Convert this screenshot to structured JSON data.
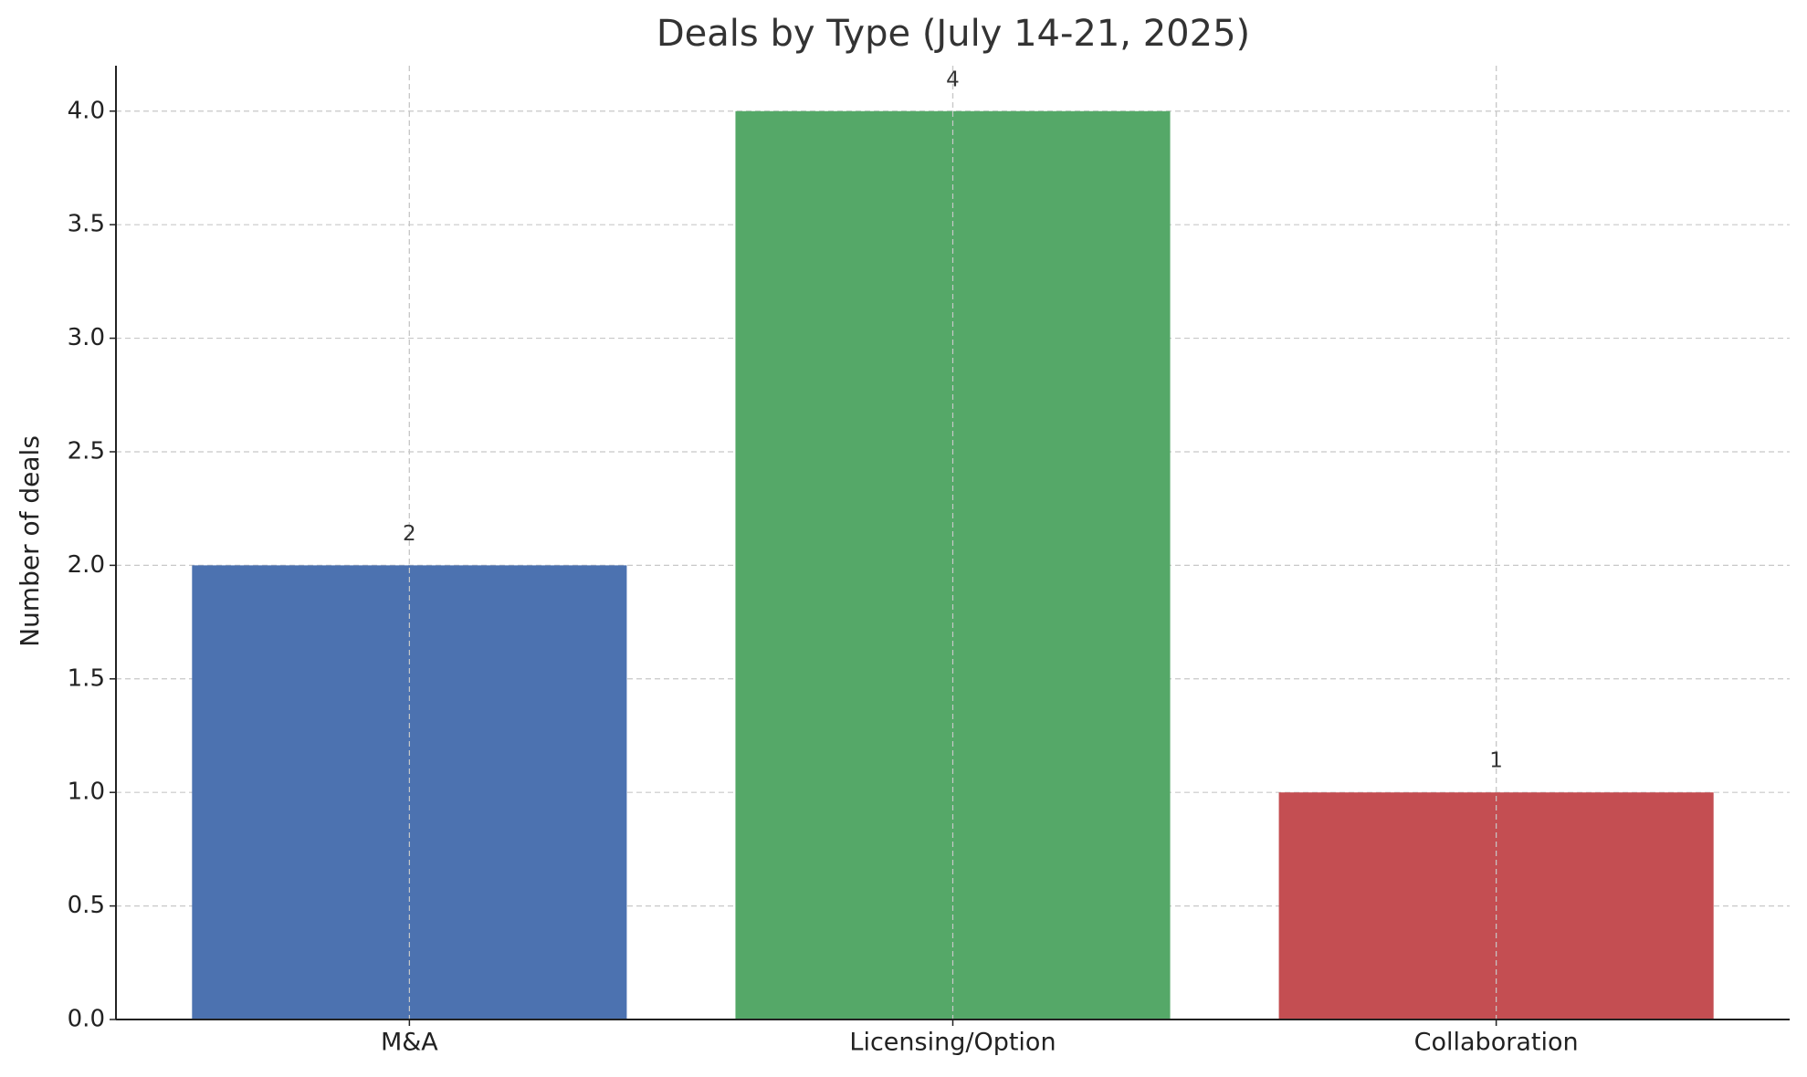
{
  "chart_data": {
    "type": "bar",
    "title": "Deals by Type (July 14-21, 2025)",
    "y_label": "Number of deals",
    "categories": [
      "M&A",
      "Licensing/Option",
      "Collaboration"
    ],
    "values": [
      2,
      4,
      1
    ],
    "colors": [
      "#4c72b0",
      "#55a868",
      "#c44e52"
    ],
    "ylim": [
      0,
      4.2
    ],
    "yticks": [
      {
        "value": 0,
        "label": "0.0"
      },
      {
        "value": 0.5,
        "label": "0.5"
      },
      {
        "value": 1,
        "label": "1.0"
      },
      {
        "value": 1.5,
        "label": "1.5"
      },
      {
        "value": 2,
        "label": "2.0"
      },
      {
        "value": 2.5,
        "label": "2.5"
      },
      {
        "value": 3,
        "label": "3.0"
      },
      {
        "value": 3.5,
        "label": "3.5"
      },
      {
        "value": 4,
        "label": "4.0"
      }
    ],
    "grid": true
  }
}
